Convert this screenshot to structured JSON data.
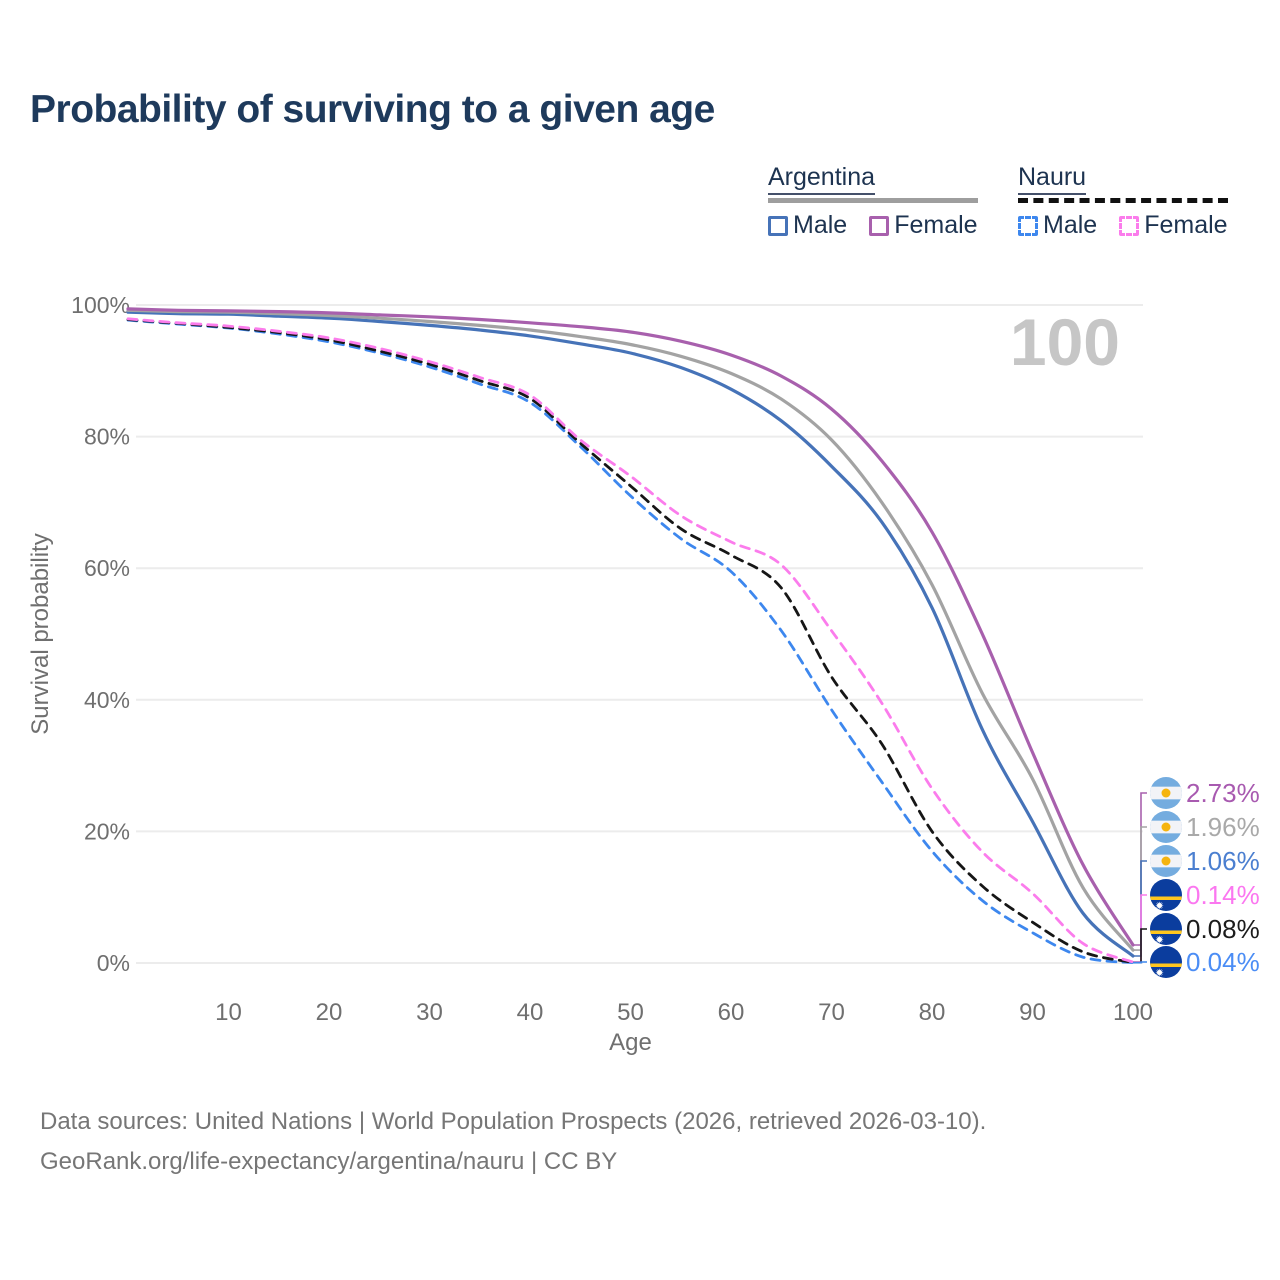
{
  "title": "Probability of surviving to a given age",
  "watermark_age": "100",
  "legend": {
    "groups": [
      {
        "title": "Argentina",
        "underline_style": "solid",
        "underline_color": "#9e9e9e",
        "items": [
          {
            "label": "Male",
            "color": "#4673b8",
            "dash": false
          },
          {
            "label": "Female",
            "color": "#a860ad",
            "dash": false
          }
        ]
      },
      {
        "title": "Nauru",
        "underline_style": "dashed",
        "underline_color": "#111111",
        "items": [
          {
            "label": "Male",
            "color": "#3d87ee",
            "dash": true
          },
          {
            "label": "Female",
            "color": "#fb7cec",
            "dash": true
          }
        ]
      }
    ]
  },
  "axes": {
    "y_title": "Survival probability",
    "x_title": "Age",
    "y_ticks": [
      "0%",
      "20%",
      "40%",
      "60%",
      "80%",
      "100%"
    ],
    "y_tick_values": [
      0,
      20,
      40,
      60,
      80,
      100
    ],
    "x_tick_values": [
      10,
      20,
      30,
      40,
      50,
      60,
      70,
      80,
      90,
      100
    ],
    "y_range": [
      0,
      100
    ],
    "x_range": [
      0,
      100
    ],
    "grid": "horizontal-only"
  },
  "chart_data": {
    "type": "line",
    "title": "Probability of surviving to a given age",
    "xlabel": "Age",
    "ylabel": "Survival probability",
    "x": [
      0,
      5,
      10,
      15,
      20,
      25,
      30,
      35,
      40,
      45,
      50,
      55,
      60,
      65,
      70,
      75,
      80,
      85,
      90,
      95,
      100
    ],
    "series": [
      {
        "name": "Nauru Male",
        "country": "nauru",
        "flag": "nauru",
        "dash": true,
        "color": "#3d87ee",
        "end_label": "0.04%",
        "end_label_color": "#4b8df5",
        "values": [
          97.7,
          97.1,
          96.5,
          95.6,
          94.4,
          92.7,
          90.6,
          88.0,
          85.2,
          78.5,
          71.0,
          64.5,
          59.5,
          50.5,
          38.5,
          27.5,
          17.0,
          9.5,
          4.6,
          0.9,
          0.04
        ]
      },
      {
        "name": "Nauru Both sexes",
        "country": "nauru",
        "flag": "nauru",
        "dash": true,
        "color": "#161616",
        "end_label": "0.08%",
        "end_label_color": "#1c1c1c",
        "values": [
          97.8,
          97.2,
          96.6,
          95.8,
          94.7,
          93.0,
          91.0,
          88.5,
          85.8,
          79.0,
          72.5,
          66.0,
          62.0,
          57.0,
          43.5,
          33.3,
          20.0,
          11.7,
          6.2,
          1.7,
          0.08
        ]
      },
      {
        "name": "Nauru Female",
        "country": "nauru",
        "flag": "nauru",
        "dash": true,
        "color": "#fb7cec",
        "end_label": "0.14%",
        "end_label_color": "#fb77f0",
        "values": [
          97.9,
          97.3,
          96.8,
          96.0,
          95.0,
          93.4,
          91.4,
          89.0,
          86.3,
          79.5,
          74.0,
          68.0,
          64.0,
          60.5,
          50.5,
          39.5,
          26.5,
          16.9,
          10.6,
          3.0,
          0.14
        ]
      },
      {
        "name": "Argentina Male",
        "country": "argentina",
        "flag": "argentina",
        "dash": false,
        "color": "#4673b8",
        "end_label": "1.06%",
        "end_label_color": "#4b7fd0",
        "values": [
          98.9,
          98.7,
          98.6,
          98.3,
          98.0,
          97.5,
          96.9,
          96.2,
          95.3,
          94.1,
          92.7,
          90.5,
          87.2,
          82.4,
          75.5,
          67.0,
          54.0,
          35.5,
          21.5,
          7.6,
          1.06
        ]
      },
      {
        "name": "Argentina Both sexes",
        "country": "argentina",
        "flag": "argentina",
        "dash": false,
        "color": "#a3a3a3",
        "end_label": "1.96%",
        "end_label_color": "#a9a9a9",
        "values": [
          99.2,
          99.0,
          98.9,
          98.7,
          98.4,
          98.0,
          97.5,
          96.9,
          96.2,
          95.2,
          94.0,
          92.2,
          89.6,
          85.7,
          79.5,
          70.0,
          57.5,
          41.0,
          28.0,
          11.5,
          1.96
        ]
      },
      {
        "name": "Argentina Female",
        "country": "argentina",
        "flag": "argentina",
        "dash": false,
        "color": "#a860ad",
        "end_label": "2.73%",
        "end_label_color": "#a85ab0",
        "values": [
          99.4,
          99.2,
          99.1,
          99.0,
          98.8,
          98.5,
          98.2,
          97.8,
          97.3,
          96.7,
          95.9,
          94.5,
          92.4,
          89.2,
          84.2,
          76.3,
          65.5,
          50.0,
          32.0,
          15.0,
          2.73
        ]
      }
    ],
    "end_label_order_top_to_bottom": [
      "2.73%",
      "1.96%",
      "1.06%",
      "0.14%",
      "0.08%",
      "0.04%"
    ],
    "legend_position": "top-right",
    "ylim": [
      0,
      100
    ],
    "xlim": [
      0,
      100
    ]
  },
  "flag_colors": {
    "argentina": {
      "band": "#74acdf",
      "middle": "#f2f3f7",
      "sun": "#f6b40e"
    },
    "nauru": {
      "field": "#0b3d9e",
      "stripe": "#ffc61e",
      "star": "#ffffff"
    }
  },
  "footer": {
    "line1": "Data sources: United Nations | World Population Prospects (2026, retrieved 2026-03-10).",
    "line2": "GeoRank.org/life-expectancy/argentina/nauru | CC BY"
  }
}
